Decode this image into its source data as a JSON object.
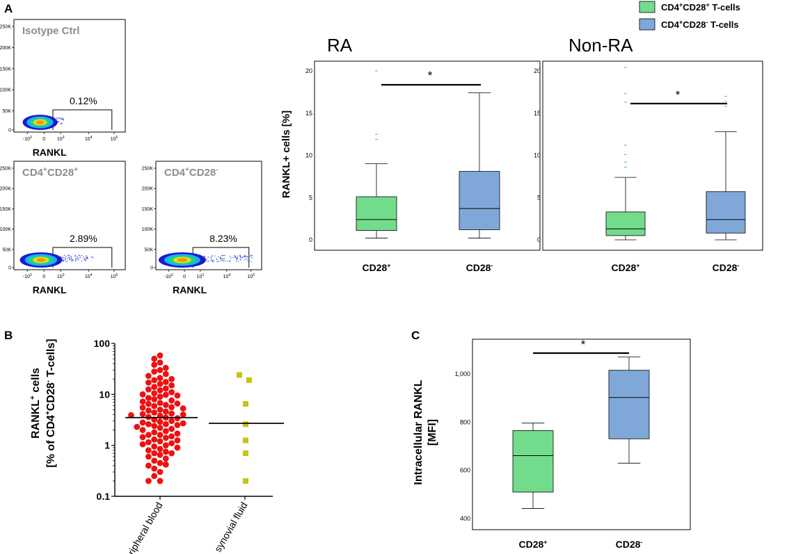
{
  "panel_labels": {
    "a": "A",
    "b": "B",
    "c": "C"
  },
  "legend": [
    {
      "label_main": "CD4",
      "sup1": "+",
      "label_mid": "CD28",
      "sup2": "+",
      "label_tail": " T-cells",
      "color": "#73dc8c"
    },
    {
      "label_main": "CD4",
      "sup1": "+",
      "label_mid": "CD28",
      "sup2": "-",
      "label_tail": " T-cells",
      "color": "#7fa8d8"
    }
  ],
  "colors": {
    "green": "#73dc8c",
    "blue": "#7fa8d8",
    "red": "#ee1111",
    "olive": "#c8c215",
    "flow_label": "#8c8c8c"
  },
  "flow_panels": [
    {
      "id": "isotype",
      "title_main": "Isotype Ctrl",
      "title_sup": "",
      "title_mid": "",
      "title_sup2": "",
      "percent": "0.12%",
      "xlabel": "RANKL",
      "spread": 0.25
    },
    {
      "id": "cd28pos",
      "title_main": "CD4",
      "title_sup": "+",
      "title_mid": "CD28",
      "title_sup2": "+",
      "percent": "2.89%",
      "xlabel": "RANKL",
      "spread": 0.7
    },
    {
      "id": "cd28neg",
      "title_main": "CD4",
      "title_sup": "+",
      "title_mid": "CD28",
      "title_sup2": "-",
      "percent": "8.23%",
      "xlabel": "RANKL",
      "spread": 1.0
    }
  ],
  "flow_axes": {
    "y_ticks": [
      "250K",
      "200K",
      "150K",
      "100K",
      "50K",
      "0"
    ],
    "x_ticks": [
      {
        "base": "-10",
        "exp": "3"
      },
      {
        "base": "0",
        "exp": ""
      },
      {
        "base": "10",
        "exp": "3"
      },
      {
        "base": "10",
        "exp": "4"
      },
      {
        "base": "10",
        "exp": "5"
      }
    ]
  },
  "box_ylabel": "RANKL+ cells [%]",
  "chart_data": [
    {
      "type": "box",
      "title": "RA",
      "ylabel": "RANKL+ cells [%]",
      "ylim": [
        0,
        20
      ],
      "yticks": [
        0,
        5,
        10,
        15,
        20
      ],
      "categories": [
        {
          "main": "CD28",
          "sup": "+"
        },
        {
          "main": "CD28",
          "sup": "-"
        }
      ],
      "boxes": [
        {
          "min": 0.2,
          "q1": 1.1,
          "median": 2.4,
          "q3": 5.1,
          "max": 9.0,
          "outliers": [
            11.9,
            12.5,
            20.0
          ],
          "color": "#73dc8c"
        },
        {
          "min": 0.2,
          "q1": 1.2,
          "median": 3.7,
          "q3": 8.1,
          "max": 17.4,
          "outliers": [],
          "color": "#7fa8d8"
        }
      ],
      "significance": "*"
    },
    {
      "type": "box",
      "title": "Non-RA",
      "ylabel": "",
      "ylim": [
        0,
        20
      ],
      "yticks": [
        0,
        5,
        10,
        15,
        20
      ],
      "categories": [
        {
          "main": "CD28",
          "sup": "+"
        },
        {
          "main": "CD28",
          "sup": "-"
        }
      ],
      "boxes": [
        {
          "min": 0.0,
          "q1": 0.5,
          "median": 1.3,
          "q3": 3.3,
          "max": 7.4,
          "outliers": [
            8.6,
            9.2,
            10.1,
            11.2,
            16.3,
            17.3,
            20.4
          ],
          "color": "#73dc8c"
        },
        {
          "min": 0.0,
          "q1": 0.8,
          "median": 2.4,
          "q3": 5.7,
          "max": 12.8,
          "outliers": [
            15.8,
            16.4,
            17.0
          ],
          "color": "#7fa8d8"
        }
      ],
      "significance": "*"
    },
    {
      "type": "scatter",
      "title": "",
      "ylabel_line1_main": "RANKL",
      "ylabel_line1_sup": "+",
      "ylabel_line1_tail": " cells",
      "ylabel_line2_a": "[% of CD4",
      "ylabel_line2_sup1": "+",
      "ylabel_line2_b": "CD28",
      "ylabel_line2_sup2": "-",
      "ylabel_line2_c": " T-cells]",
      "yscale": "log",
      "ylim": [
        0.1,
        100
      ],
      "yticks": [
        "100",
        "10",
        "1",
        "0.1"
      ],
      "categories": [
        "peripheral blood",
        "synovial fluid"
      ],
      "series": [
        {
          "name": "peripheral blood",
          "color": "#ee1111",
          "median": 3.5,
          "values": [
            58,
            50,
            42,
            38,
            33,
            30,
            28,
            25,
            23,
            21,
            20,
            19,
            17,
            16,
            15,
            14,
            13,
            12,
            11,
            10.5,
            10,
            9.5,
            9,
            8.5,
            8,
            7.6,
            7.2,
            6.8,
            6.5,
            6.2,
            5.9,
            5.6,
            5.3,
            5,
            4.8,
            4.6,
            4.4,
            4.2,
            4,
            3.8,
            3.6,
            3.5,
            3.4,
            3.2,
            3,
            2.9,
            2.8,
            2.7,
            2.6,
            2.5,
            2.4,
            2.3,
            2.2,
            2.1,
            2,
            1.9,
            1.8,
            1.7,
            1.6,
            1.5,
            1.45,
            1.4,
            1.3,
            1.25,
            1.2,
            1.1,
            1.05,
            1,
            0.95,
            0.9,
            0.85,
            0.8,
            0.75,
            0.7,
            0.65,
            0.6,
            0.55,
            0.5,
            0.45,
            0.4,
            0.35,
            0.3,
            0.25,
            0.2,
            0.2,
            4.1,
            3.9,
            5.5,
            2.6,
            6.6,
            1.6,
            12.5,
            0.7,
            0.42,
            17.5,
            9.8,
            1.15
          ]
        },
        {
          "name": "synovial fluid",
          "color": "#c8c215",
          "median": 2.7,
          "values": [
            24,
            19,
            6.5,
            2.6,
            1.25,
            0.7,
            0.2
          ]
        }
      ]
    },
    {
      "type": "box",
      "title": "",
      "ylabel_line1": "Intracellular RANKL",
      "ylabel_line2": "[MFI]",
      "ylim": [
        360,
        1115
      ],
      "yticks": [
        400,
        600,
        800,
        1000
      ],
      "ytick_labels": [
        "400",
        "600",
        "800",
        "1,000"
      ],
      "categories": [
        {
          "main": "CD28",
          "sup": "+"
        },
        {
          "main": "CD28",
          "sup": "-"
        }
      ],
      "boxes": [
        {
          "min": 442,
          "q1": 510,
          "median": 661,
          "q3": 765,
          "max": 796,
          "outliers": [],
          "color": "#73dc8c"
        },
        {
          "min": 630,
          "q1": 731,
          "median": 902,
          "q3": 1015,
          "max": 1070,
          "outliers": [],
          "color": "#7fa8d8"
        }
      ],
      "significance": "*"
    }
  ]
}
